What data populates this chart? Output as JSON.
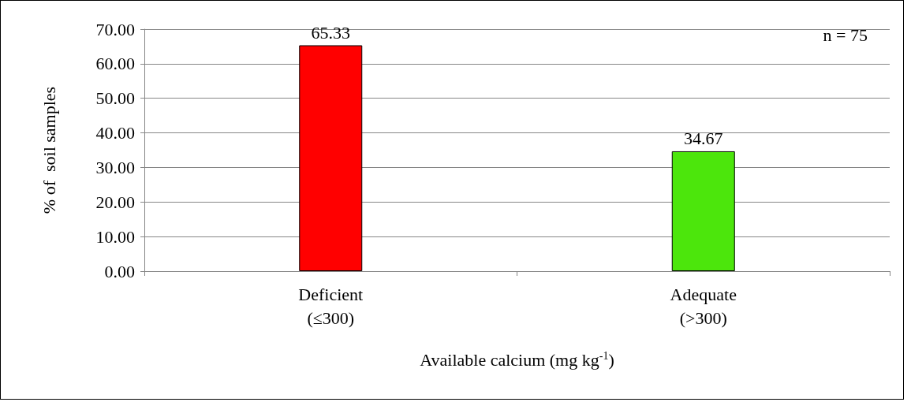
{
  "chart_data": {
    "type": "bar",
    "categories": [
      "Deficient\n(≤300)",
      "Adequate\n(>300)"
    ],
    "values": [
      65.33,
      34.67
    ],
    "colors": [
      "#ff0000",
      "#4ce60c"
    ],
    "xlabel": "Available calcium (mg kg$^{-1}$)",
    "ylabel": "% of  soil samples",
    "ylim": [
      0,
      70
    ],
    "yticks": [
      {
        "value": 0,
        "label": "0.00"
      },
      {
        "value": 10,
        "label": "10.00"
      },
      {
        "value": 20,
        "label": "20.00"
      },
      {
        "value": 30,
        "label": "30.00"
      },
      {
        "value": 40,
        "label": "40.00"
      },
      {
        "value": 50,
        "label": "50.00"
      },
      {
        "value": 60,
        "label": "60.00"
      },
      {
        "value": 70,
        "label": "70.00"
      }
    ],
    "grid": "y",
    "data_labels": true,
    "annotations": [
      "n = 75"
    ]
  }
}
